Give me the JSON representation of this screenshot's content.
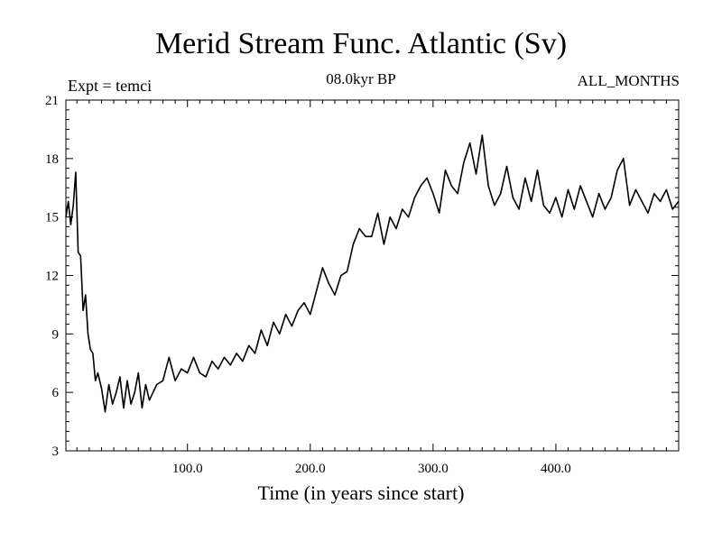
{
  "chart_data": {
    "type": "line",
    "title": "Merid Stream Func. Atlantic (Sv)",
    "subtitle": "08.0kyr BP",
    "left_label": "Expt = temci",
    "right_label": "ALL_MONTHS",
    "xlabel": "Time (in years since start)",
    "ylabel": "",
    "xlim": [
      1,
      500
    ],
    "ylim": [
      3,
      21
    ],
    "x_ticks": [
      100,
      200,
      300,
      400
    ],
    "x_tick_labels": [
      "100.0",
      "200.0",
      "300.0",
      "400.0"
    ],
    "y_ticks": [
      3,
      6,
      9,
      12,
      15,
      18,
      21
    ],
    "y_tick_labels": [
      "3",
      "6",
      "9",
      "12",
      "15",
      "18",
      "21"
    ],
    "series": [
      {
        "name": "Merid Stream Func. Atlantic",
        "x": [
          1,
          3,
          5,
          7,
          9,
          11,
          13,
          15,
          17,
          19,
          21,
          23,
          25,
          27,
          30,
          33,
          36,
          39,
          42,
          45,
          48,
          51,
          54,
          57,
          60,
          63,
          66,
          69,
          72,
          75,
          80,
          85,
          90,
          95,
          100,
          105,
          110,
          115,
          120,
          125,
          130,
          135,
          140,
          145,
          150,
          155,
          160,
          165,
          170,
          175,
          180,
          185,
          190,
          195,
          200,
          205,
          210,
          215,
          220,
          225,
          230,
          235,
          240,
          245,
          250,
          255,
          260,
          265,
          270,
          275,
          280,
          285,
          290,
          295,
          300,
          305,
          310,
          315,
          320,
          325,
          330,
          335,
          340,
          345,
          350,
          355,
          360,
          365,
          370,
          375,
          380,
          385,
          390,
          395,
          400,
          405,
          410,
          415,
          420,
          425,
          430,
          435,
          440,
          445,
          450,
          455,
          460,
          465,
          470,
          475,
          480,
          485,
          490,
          495,
          500
        ],
        "values": [
          15.0,
          15.8,
          14.6,
          15.6,
          17.3,
          13.2,
          13.0,
          10.2,
          11.0,
          9.0,
          8.2,
          8.0,
          6.6,
          7.0,
          6.2,
          5.0,
          6.4,
          5.4,
          6.0,
          6.8,
          5.2,
          6.6,
          5.4,
          6.0,
          7.0,
          5.2,
          6.4,
          5.6,
          6.0,
          6.4,
          6.6,
          7.8,
          6.6,
          7.2,
          7.0,
          7.8,
          7.0,
          6.8,
          7.6,
          7.2,
          7.8,
          7.4,
          8.0,
          7.6,
          8.4,
          8.0,
          9.2,
          8.4,
          9.6,
          9.0,
          10.0,
          9.4,
          10.2,
          10.6,
          10.0,
          11.2,
          12.4,
          11.6,
          11.0,
          12.0,
          12.2,
          13.6,
          14.4,
          14.0,
          14.0,
          15.2,
          13.6,
          15.0,
          14.4,
          15.4,
          15.0,
          16.0,
          16.6,
          17.0,
          16.2,
          15.2,
          17.4,
          16.6,
          16.2,
          17.8,
          18.8,
          17.2,
          19.2,
          16.6,
          15.6,
          16.2,
          17.6,
          16.0,
          15.4,
          17.0,
          15.8,
          17.4,
          15.6,
          15.2,
          16.0,
          15.0,
          16.4,
          15.4,
          16.6,
          15.8,
          15.0,
          16.2,
          15.4,
          16.0,
          17.4,
          18.0,
          15.6,
          16.4,
          15.8,
          15.2,
          16.2,
          15.8,
          16.4,
          15.4,
          15.8
        ]
      }
    ]
  }
}
